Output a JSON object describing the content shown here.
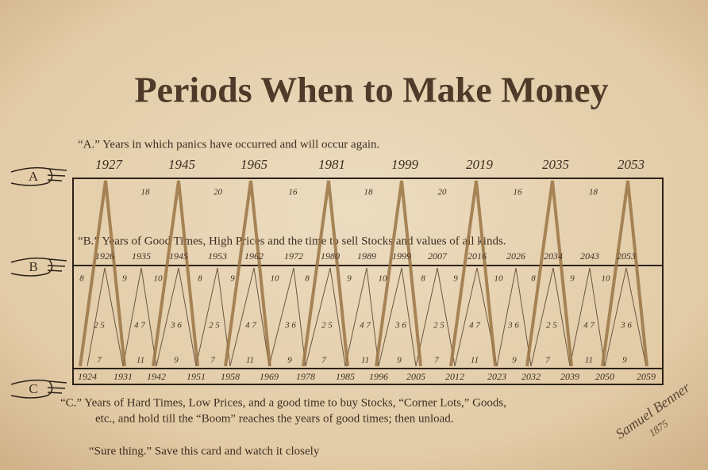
{
  "title": "Periods When to Make Money",
  "section_a": {
    "hand": "A",
    "label": "“A.” Years in which panics have occurred and will occur again.",
    "years": [
      1927,
      1945,
      1965,
      1981,
      1999,
      2019,
      2035,
      2053
    ],
    "intervals": [
      18,
      20,
      16,
      18,
      20,
      16,
      18
    ]
  },
  "section_b": {
    "hand": "B",
    "label": "“B.” Years of Good Times, High Prices and the time to sell Stocks and values of all kinds.",
    "years": [
      1926,
      1935,
      1945,
      1953,
      1962,
      1972,
      1980,
      1989,
      1999,
      2007,
      2016,
      2026,
      2034,
      2043,
      2053
    ],
    "top_numbers": [
      8,
      9,
      10,
      8,
      9,
      10,
      8,
      9,
      10,
      8,
      9,
      10,
      8,
      9,
      10
    ],
    "middle_numbers": [
      "2 5",
      "4 7",
      "3 6",
      "2 5",
      "4 7",
      "3 6",
      "2 5",
      "4 7",
      "3 6",
      "2 5",
      "4 7",
      "3 6",
      "2 5",
      "4 7",
      "3 6"
    ],
    "bottom_numbers": [
      7,
      11,
      9,
      7,
      11,
      9,
      7,
      11,
      9,
      7,
      11,
      9,
      7,
      11,
      9
    ]
  },
  "section_c": {
    "hand": "C",
    "years": [
      1924,
      1931,
      1942,
      1951,
      1958,
      1969,
      1978,
      1985,
      1996,
      2005,
      2012,
      2023,
      2032,
      2039,
      2050,
      2059
    ],
    "label_lines": [
      "“C.”   Years of Hard Times, Low Prices, and a good time to buy Stocks, “Corner Lots,” Goods,",
      "etc., and hold till the  “Boom”  reaches the years of good times; then unload."
    ]
  },
  "footer": "“Sure thing.” Save this card and watch it closely",
  "signature": {
    "name": "Samuel Benner",
    "year": "1875"
  }
}
